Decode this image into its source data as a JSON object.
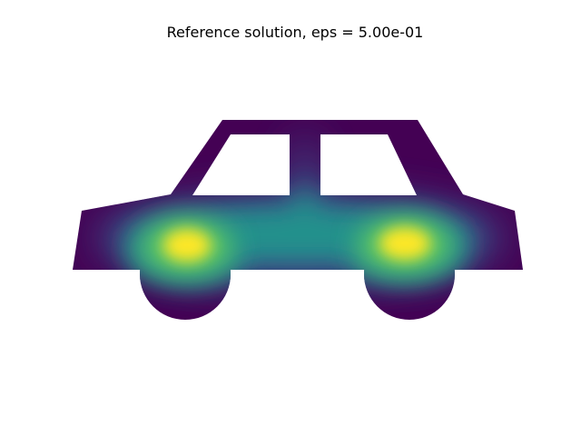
{
  "chart_data": {
    "type": "heatmap",
    "title": "Reference solution, eps = 5.00e-01",
    "xlabel": "",
    "ylabel": "",
    "axes_visible": false,
    "grid": false,
    "legend": "none",
    "colormap": "viridis",
    "colors": {
      "low": "#440154",
      "mid_low": "#3b528b",
      "mid": "#21918c",
      "mid_high": "#5ec962",
      "high": "#fde725"
    },
    "domain": "car-shaped region with two window cut-outs",
    "field_maxima": [
      {
        "label": "rear wheel region",
        "relative_value": 1.0
      },
      {
        "label": "front wheel region",
        "relative_value": 1.0
      }
    ]
  }
}
